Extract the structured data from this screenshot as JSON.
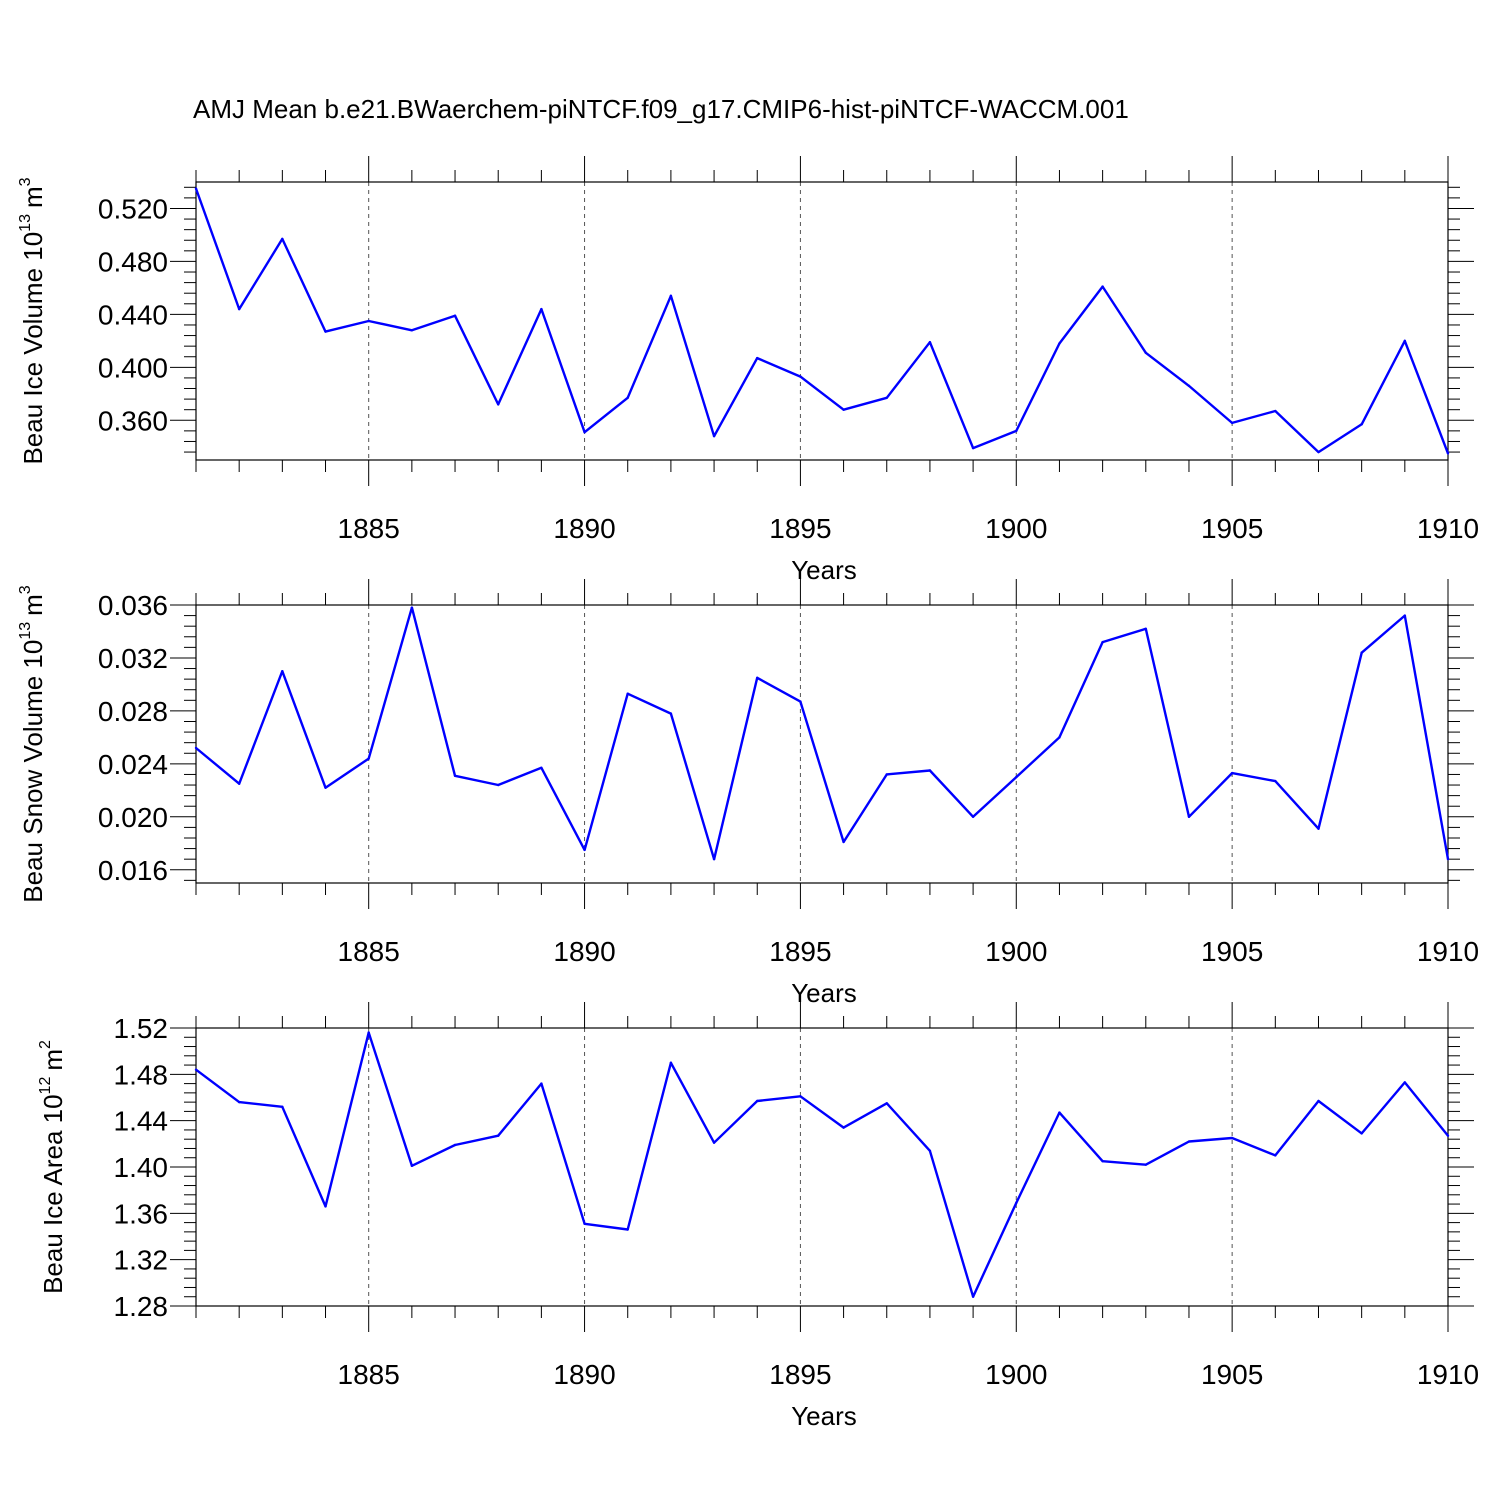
{
  "title": "AMJ Mean b.e21.BWaerchem-piNTCF.f09_g17.CMIP6-hist-piNTCF-WACCM.001",
  "chart_data": [
    {
      "type": "line",
      "ylabel_main": "Beau Ice Volume 10",
      "ylabel_exp": "13",
      "ylabel_unit": "m",
      "ylabel_unit_exp": "3",
      "xlabel": "Years",
      "xlim": [
        1881,
        1910
      ],
      "ylim": [
        0.33,
        0.54
      ],
      "y_ticks": [
        0.36,
        0.4,
        0.44,
        0.48,
        0.52
      ],
      "y_tick_labels": [
        "0.360",
        "0.400",
        "0.440",
        "0.480",
        "0.520"
      ],
      "x_ticks": [
        1885,
        1890,
        1895,
        1900,
        1905,
        1910
      ],
      "x_tick_labels": [
        "1885",
        "1890",
        "1895",
        "1900",
        "1905",
        "1910"
      ],
      "grid": "vertical dashed at major x ticks",
      "line_color": "#0000ff",
      "x": [
        1881,
        1882,
        1883,
        1884,
        1885,
        1886,
        1887,
        1888,
        1889,
        1890,
        1891,
        1892,
        1893,
        1894,
        1895,
        1896,
        1897,
        1898,
        1899,
        1900,
        1901,
        1902,
        1903,
        1904,
        1905,
        1906,
        1907,
        1908,
        1909,
        1910
      ],
      "values": [
        0.535,
        0.444,
        0.497,
        0.427,
        0.435,
        0.428,
        0.439,
        0.372,
        0.444,
        0.351,
        0.377,
        0.454,
        0.348,
        0.407,
        0.393,
        0.368,
        0.377,
        0.419,
        0.339,
        0.352,
        0.418,
        0.461,
        0.411,
        0.386,
        0.358,
        0.367,
        0.336,
        0.357,
        0.42,
        0.335
      ]
    },
    {
      "type": "line",
      "ylabel_main": "Beau Snow Volume 10",
      "ylabel_exp": "13",
      "ylabel_unit": "m",
      "ylabel_unit_exp": "3",
      "xlabel": "Years",
      "xlim": [
        1881,
        1910
      ],
      "ylim": [
        0.015,
        0.036
      ],
      "y_ticks": [
        0.016,
        0.02,
        0.024,
        0.028,
        0.032,
        0.036
      ],
      "y_tick_labels": [
        "0.016",
        "0.020",
        "0.024",
        "0.028",
        "0.032",
        "0.036"
      ],
      "x_ticks": [
        1885,
        1890,
        1895,
        1900,
        1905,
        1910
      ],
      "x_tick_labels": [
        "1885",
        "1890",
        "1895",
        "1900",
        "1905",
        "1910"
      ],
      "grid": "vertical dashed at major x ticks",
      "line_color": "#0000ff",
      "x": [
        1881,
        1882,
        1883,
        1884,
        1885,
        1886,
        1887,
        1888,
        1889,
        1890,
        1891,
        1892,
        1893,
        1894,
        1895,
        1896,
        1897,
        1898,
        1899,
        1900,
        1901,
        1902,
        1903,
        1904,
        1905,
        1906,
        1907,
        1908,
        1909,
        1910
      ],
      "values": [
        0.0252,
        0.0225,
        0.031,
        0.0222,
        0.0244,
        0.0358,
        0.0231,
        0.0224,
        0.0237,
        0.0175,
        0.0293,
        0.0278,
        0.0168,
        0.0305,
        0.0287,
        0.0181,
        0.0232,
        0.0235,
        0.02,
        0.023,
        0.026,
        0.0332,
        0.0342,
        0.02,
        0.0233,
        0.0227,
        0.0191,
        0.0324,
        0.0352,
        0.0168
      ]
    },
    {
      "type": "line",
      "ylabel_main": "Beau Ice Area 10",
      "ylabel_exp": "12",
      "ylabel_unit": "m",
      "ylabel_unit_exp": "2",
      "xlabel": "Years",
      "xlim": [
        1881,
        1910
      ],
      "ylim": [
        1.28,
        1.52
      ],
      "y_ticks": [
        1.28,
        1.32,
        1.36,
        1.4,
        1.44,
        1.48,
        1.52
      ],
      "y_tick_labels": [
        "1.28",
        "1.32",
        "1.36",
        "1.40",
        "1.44",
        "1.48",
        "1.52"
      ],
      "x_ticks": [
        1885,
        1890,
        1895,
        1900,
        1905,
        1910
      ],
      "x_tick_labels": [
        "1885",
        "1890",
        "1895",
        "1900",
        "1905",
        "1910"
      ],
      "grid": "vertical dashed at major x ticks",
      "line_color": "#0000ff",
      "x": [
        1881,
        1882,
        1883,
        1884,
        1885,
        1886,
        1887,
        1888,
        1889,
        1890,
        1891,
        1892,
        1893,
        1894,
        1895,
        1896,
        1897,
        1898,
        1899,
        1900,
        1901,
        1902,
        1903,
        1904,
        1905,
        1906,
        1907,
        1908,
        1909,
        1910
      ],
      "values": [
        1.484,
        1.456,
        1.452,
        1.366,
        1.516,
        1.401,
        1.419,
        1.427,
        1.472,
        1.351,
        1.346,
        1.49,
        1.421,
        1.457,
        1.461,
        1.434,
        1.455,
        1.414,
        1.288,
        1.369,
        1.447,
        1.405,
        1.402,
        1.422,
        1.425,
        1.41,
        1.457,
        1.429,
        1.473,
        1.427
      ]
    }
  ]
}
